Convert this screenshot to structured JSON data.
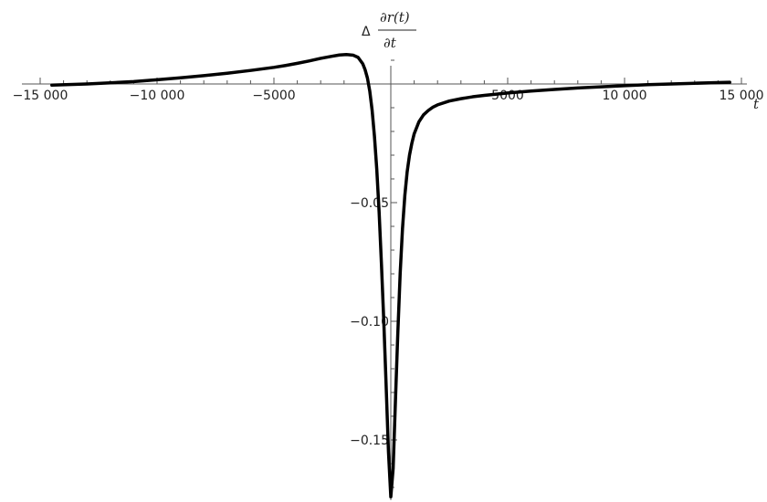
{
  "chart_data": {
    "type": "line",
    "title": "",
    "xlabel": "t",
    "ylabel": {
      "prefix": "Δ",
      "numerator": "∂r(t)",
      "denominator": "∂t"
    },
    "xlim": [
      -15000,
      15000
    ],
    "ylim": [
      -0.175,
      0.015
    ],
    "x_ticks": [
      {
        "value": -15000,
        "label": "−15 000"
      },
      {
        "value": -10000,
        "label": "−10 000"
      },
      {
        "value": -5000,
        "label": "−5000"
      },
      {
        "value": 5000,
        "label": "5000"
      },
      {
        "value": 10000,
        "label": "10 000"
      },
      {
        "value": 15000,
        "label": "15 000"
      }
    ],
    "y_ticks": [
      {
        "value": -0.05,
        "label": "−0.05"
      },
      {
        "value": -0.1,
        "label": "−0.10"
      },
      {
        "value": -0.15,
        "label": "−0.15"
      }
    ],
    "grid": false,
    "series": [
      {
        "color": "#000000",
        "x": [
          -14500,
          -13000,
          -12000,
          -11000,
          -10000,
          -9000,
          -8000,
          -7000,
          -6000,
          -5000,
          -4500,
          -4000,
          -3500,
          -3000,
          -2500,
          -2200,
          -1900,
          -1600,
          -1400,
          -1200,
          -1100,
          -1000,
          -900,
          -800,
          -700,
          -600,
          -500,
          -400,
          -300,
          -200,
          -100,
          0,
          100,
          200,
          300,
          400,
          500,
          600,
          700,
          800,
          900,
          1000,
          1200,
          1400,
          1600,
          1800,
          2000,
          2500,
          3000,
          3500,
          4000,
          5000,
          6000,
          7000,
          8000,
          9000,
          10000,
          11000,
          12000,
          13000,
          14500
        ],
        "y": [
          -0.0005,
          0.0,
          0.0005,
          0.001,
          0.0018,
          0.0026,
          0.0035,
          0.0045,
          0.0057,
          0.007,
          0.0078,
          0.0087,
          0.0097,
          0.0108,
          0.0117,
          0.0122,
          0.0124,
          0.0121,
          0.0112,
          0.0085,
          0.006,
          0.0025,
          -0.003,
          -0.011,
          -0.022,
          -0.036,
          -0.054,
          -0.076,
          -0.1,
          -0.127,
          -0.155,
          -0.174,
          -0.162,
          -0.133,
          -0.105,
          -0.08,
          -0.061,
          -0.047,
          -0.037,
          -0.03,
          -0.025,
          -0.021,
          -0.016,
          -0.013,
          -0.0112,
          -0.0098,
          -0.0088,
          -0.0072,
          -0.0062,
          -0.0054,
          -0.0048,
          -0.0038,
          -0.003,
          -0.0023,
          -0.0017,
          -0.0012,
          -0.0007,
          -0.0003,
          0.0,
          0.0003,
          0.0007
        ]
      }
    ]
  }
}
